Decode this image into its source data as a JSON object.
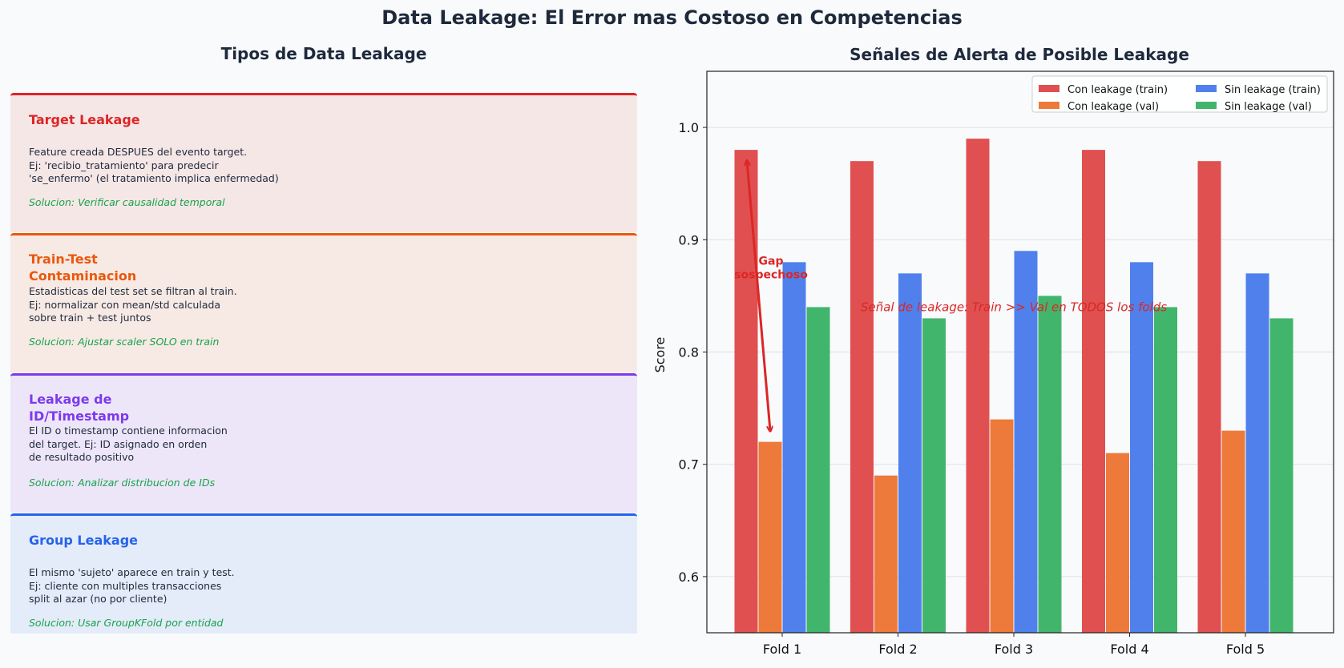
{
  "title": "Data Leakage: El Error mas Costoso en Competencias",
  "left_panel": {
    "title": "Tipos de Data Leakage",
    "cards": [
      {
        "title": "Target Leakage",
        "desc": "Feature creada DESPUES del evento target.\nEj: 'recibio_tratamiento' para predecir\n'se_enfermo' (el tratamiento implica enfermedad)",
        "solution": "Solucion: Verificar causalidad temporal",
        "color": "#dc2626",
        "bg": "#f6e7e7"
      },
      {
        "title": "Train-Test\nContaminacion",
        "desc": "Estadisticas del test set se filtran al train.\nEj: normalizar con mean/std calculada\nsobre train + test juntos",
        "solution": "Solucion: Ajustar scaler SOLO en train",
        "color": "#ea580c",
        "bg": "#f7eae5"
      },
      {
        "title": "Leakage de\nID/Timestamp",
        "desc": "El ID o timestamp contiene informacion\ndel target. Ej: ID asignado en orden\nde resultado positivo",
        "solution": "Solucion: Analizar distribucion de IDs",
        "color": "#7c3aed",
        "bg": "#ede6f9"
      },
      {
        "title": "Group Leakage",
        "desc": "El mismo 'sujeto' aparece en train y test.\nEj: cliente con multiples transacciones\nsplit al azar (no por cliente)",
        "solution": "Solucion: Usar GroupKFold por entidad",
        "color": "#2563eb",
        "bg": "#e4ebf9"
      }
    ]
  },
  "chart_data": {
    "type": "bar",
    "title": "Señales de Alerta de Posible Leakage",
    "xlabel": "",
    "ylabel": "Score",
    "categories": [
      "Fold 1",
      "Fold 2",
      "Fold 3",
      "Fold 4",
      "Fold 5"
    ],
    "series": [
      {
        "name": "Con leakage (train)",
        "color": "#e05050",
        "values": [
          0.98,
          0.97,
          0.99,
          0.98,
          0.97
        ]
      },
      {
        "name": "Con leakage (val)",
        "color": "#ed7a3a",
        "values": [
          0.72,
          0.69,
          0.74,
          0.71,
          0.73
        ]
      },
      {
        "name": "Sin leakage (train)",
        "color": "#5080ec",
        "values": [
          0.88,
          0.87,
          0.89,
          0.88,
          0.87
        ]
      },
      {
        "name": "Sin leakage (val)",
        "color": "#42b56c",
        "values": [
          0.84,
          0.83,
          0.85,
          0.84,
          0.83
        ]
      }
    ],
    "ylim": [
      0.55,
      1.05
    ],
    "yticks": [
      0.6,
      0.7,
      0.8,
      0.9,
      1.0
    ],
    "grid": "y",
    "legend": "top-right",
    "annotations": {
      "gap_label": "Gap\nsospechoso",
      "gap_arrow": {
        "category": "Fold 1",
        "from": 0.97,
        "to": 0.73
      },
      "signal_text": "Señal de leakage: Train >> Val en TODOS los folds",
      "signal_text_y": 0.84,
      "color": "#dc2626"
    }
  }
}
